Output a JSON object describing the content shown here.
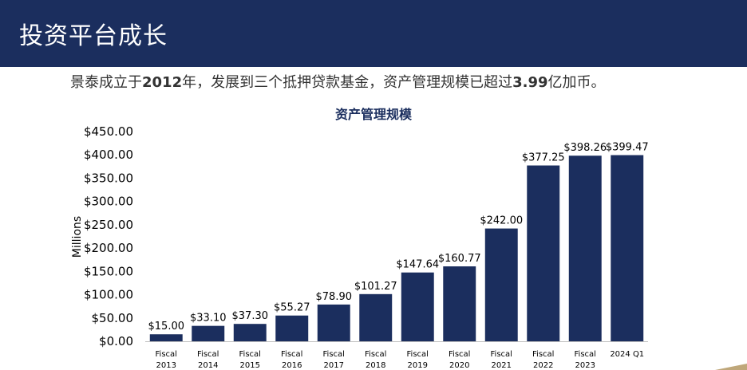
{
  "header": {
    "title": "投资平台成长"
  },
  "subtitle": {
    "part1": "景泰成立于",
    "year": "2012",
    "part2": "年，发展到三个抵押贷款基金，资产管理规模已超过",
    "amount": "3.99",
    "part3": "亿加币。"
  },
  "colors": {
    "header_bg": "#1b2e5e",
    "bar": "#1b2e5e"
  },
  "chart_data": {
    "type": "bar",
    "title": "资产管理规模",
    "ylabel": "Millions",
    "xlabel": "",
    "ylim": [
      0,
      450
    ],
    "yticks": [
      "$0.00",
      "$50.00",
      "$100.00",
      "$150.00",
      "$200.00",
      "$250.00",
      "$300.00",
      "$350.00",
      "$400.00",
      "$450.00"
    ],
    "ytick_values": [
      0,
      50,
      100,
      150,
      200,
      250,
      300,
      350,
      400,
      450
    ],
    "categories": [
      [
        "Fiscal",
        "2013"
      ],
      [
        "Fiscal",
        "2014"
      ],
      [
        "Fiscal",
        "2015"
      ],
      [
        "Fiscal",
        "2016"
      ],
      [
        "Fiscal",
        "2017"
      ],
      [
        "Fiscal",
        "2018"
      ],
      [
        "Fiscal",
        "2019"
      ],
      [
        "Fiscal",
        "2020"
      ],
      [
        "Fiscal",
        "2021"
      ],
      [
        "Fiscal",
        "2022"
      ],
      [
        "Fiscal",
        "2023"
      ],
      [
        "2024 Q1"
      ]
    ],
    "values": [
      15.0,
      33.1,
      37.3,
      55.27,
      78.9,
      101.27,
      147.64,
      160.77,
      242.0,
      377.25,
      398.26,
      399.47
    ],
    "data_labels": [
      "$15.00",
      "$33.10",
      "$37.30",
      "$55.27",
      "$78.90",
      "$101.27",
      "$147.64",
      "$160.77",
      "$242.00",
      "$377.25",
      "$398.26",
      "$399.47"
    ],
    "grid": false,
    "legend": "none"
  }
}
